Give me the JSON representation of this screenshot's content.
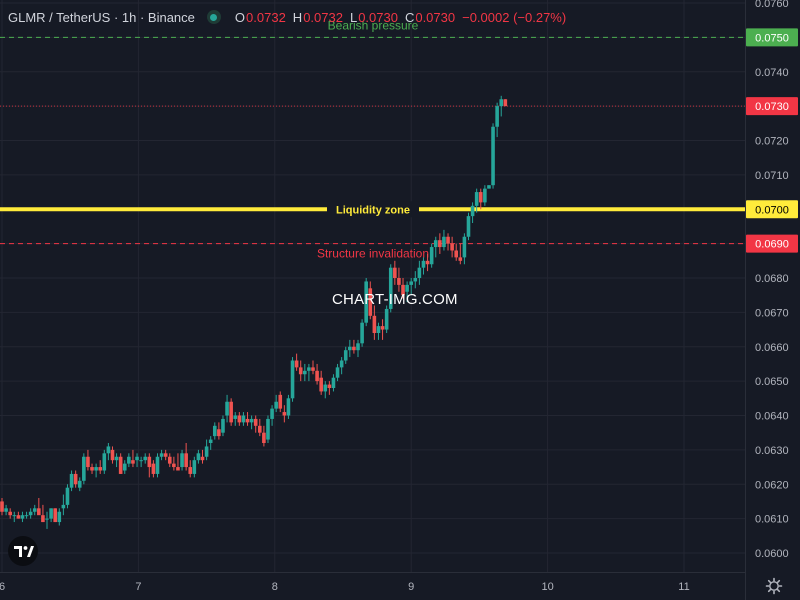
{
  "header": {
    "symbol": "GLMR / TetherUS · 1h · Binance",
    "open_key": "O",
    "open": "0.0732",
    "high_key": "H",
    "high": "0.0732",
    "low_key": "L",
    "low": "0.0730",
    "close_key": "C",
    "close": "0.0730",
    "change": "−0.0002 (−0.27%)",
    "status_color": "#26a69a"
  },
  "watermark": "CHART-IMG.COM",
  "colors": {
    "background": "#161a25",
    "grid": "#232632",
    "up": "#26a69a",
    "down": "#ef5350",
    "axis_text": "#b2b5be"
  },
  "icons": {
    "logo": "tradingview-logo-icon",
    "settings": "gear-icon"
  },
  "chart_data": {
    "type": "candlestick",
    "x_ticks": [
      "6",
      "7",
      "8",
      "9",
      "10",
      "11"
    ],
    "y_ticks": [
      "0.0600",
      "0.0610",
      "0.0620",
      "0.0630",
      "0.0640",
      "0.0650",
      "0.0660",
      "0.0670",
      "0.0680",
      "0.0690",
      "0.0700",
      "0.0710",
      "0.0720",
      "0.0730",
      "0.0740",
      "0.0750",
      "0.0760"
    ],
    "ylim": [
      0.0596,
      0.0762
    ],
    "xlim": [
      6.0,
      11.85
    ],
    "levels": [
      {
        "name": "bearish-pressure",
        "price": 0.075,
        "label": "Bearish pressure",
        "price_label": "0.0750",
        "color": "#4caf50",
        "style": "dashed"
      },
      {
        "name": "liquidity-zone",
        "price": 0.07,
        "label": "Liquidity zone",
        "price_label": "0.0700",
        "color": "#ffeb3b",
        "style": "solid"
      },
      {
        "name": "structure-invalidation",
        "price": 0.069,
        "label": "Structure invalidation",
        "price_label": "0.0690",
        "color": "#f23645",
        "style": "dashed"
      },
      {
        "name": "last-price",
        "price": 0.073,
        "label": "",
        "price_label": "0.0730",
        "color": "#f23645",
        "style": "dotted"
      }
    ],
    "candles_start": 6.0,
    "candle_step": 0.03,
    "candles": [
      [
        0.0615,
        0.0616,
        0.0611,
        0.0612
      ],
      [
        0.0612,
        0.0614,
        0.0611,
        0.0613
      ],
      [
        0.0612,
        0.0613,
        0.061,
        0.0611
      ],
      [
        0.0611,
        0.0612,
        0.0609,
        0.0611
      ],
      [
        0.0611,
        0.0612,
        0.061,
        0.061
      ],
      [
        0.061,
        0.0612,
        0.0609,
        0.0611
      ],
      [
        0.0611,
        0.0612,
        0.061,
        0.0611
      ],
      [
        0.0611,
        0.0613,
        0.061,
        0.0612
      ],
      [
        0.0612,
        0.0614,
        0.0611,
        0.0613
      ],
      [
        0.0613,
        0.0616,
        0.0612,
        0.0611
      ],
      [
        0.0611,
        0.0614,
        0.0609,
        0.0609
      ],
      [
        0.061,
        0.0612,
        0.0607,
        0.061
      ],
      [
        0.061,
        0.0613,
        0.0609,
        0.0613
      ],
      [
        0.0613,
        0.0613,
        0.0609,
        0.0609
      ],
      [
        0.0609,
        0.0613,
        0.0608,
        0.0612
      ],
      [
        0.0613,
        0.0617,
        0.0611,
        0.0614
      ],
      [
        0.0614,
        0.062,
        0.0613,
        0.0619
      ],
      [
        0.0619,
        0.0624,
        0.0618,
        0.0623
      ],
      [
        0.0623,
        0.0624,
        0.0619,
        0.062
      ],
      [
        0.0619,
        0.0622,
        0.0618,
        0.0621
      ],
      [
        0.0621,
        0.0629,
        0.062,
        0.0628
      ],
      [
        0.0628,
        0.063,
        0.0624,
        0.0625
      ],
      [
        0.0625,
        0.0626,
        0.0623,
        0.0624
      ],
      [
        0.0624,
        0.0626,
        0.0622,
        0.0625
      ],
      [
        0.0625,
        0.0627,
        0.0623,
        0.0624
      ],
      [
        0.0624,
        0.063,
        0.0623,
        0.0629
      ],
      [
        0.0629,
        0.0632,
        0.0627,
        0.0631
      ],
      [
        0.063,
        0.0631,
        0.0626,
        0.0627
      ],
      [
        0.0627,
        0.0629,
        0.0625,
        0.0628
      ],
      [
        0.0628,
        0.0629,
        0.0623,
        0.0623
      ],
      [
        0.0624,
        0.0627,
        0.0623,
        0.0626
      ],
      [
        0.0626,
        0.0629,
        0.0625,
        0.0628
      ],
      [
        0.0627,
        0.063,
        0.0625,
        0.0626
      ],
      [
        0.0627,
        0.0629,
        0.0625,
        0.0628
      ],
      [
        0.0627,
        0.0628,
        0.0625,
        0.0627
      ],
      [
        0.0627,
        0.0629,
        0.0626,
        0.0628
      ],
      [
        0.0628,
        0.0629,
        0.0622,
        0.0625
      ],
      [
        0.0626,
        0.0627,
        0.0622,
        0.0623
      ],
      [
        0.0623,
        0.0629,
        0.0622,
        0.0628
      ],
      [
        0.0628,
        0.063,
        0.0627,
        0.0629
      ],
      [
        0.0629,
        0.063,
        0.0627,
        0.0628
      ],
      [
        0.0628,
        0.0629,
        0.0625,
        0.0626
      ],
      [
        0.0626,
        0.0628,
        0.0624,
        0.0625
      ],
      [
        0.0625,
        0.0629,
        0.0624,
        0.0624
      ],
      [
        0.0625,
        0.063,
        0.0624,
        0.0629
      ],
      [
        0.0629,
        0.0632,
        0.0624,
        0.0625
      ],
      [
        0.0625,
        0.0627,
        0.0622,
        0.0623
      ],
      [
        0.0623,
        0.0628,
        0.0622,
        0.0627
      ],
      [
        0.0627,
        0.063,
        0.0626,
        0.0629
      ],
      [
        0.0628,
        0.063,
        0.0626,
        0.0627
      ],
      [
        0.0628,
        0.0633,
        0.0627,
        0.0631
      ],
      [
        0.0632,
        0.0634,
        0.063,
        0.0633
      ],
      [
        0.0634,
        0.0638,
        0.0633,
        0.0637
      ],
      [
        0.0636,
        0.0638,
        0.0633,
        0.0634
      ],
      [
        0.0635,
        0.064,
        0.0634,
        0.0639
      ],
      [
        0.064,
        0.0646,
        0.0638,
        0.0644
      ],
      [
        0.0644,
        0.0645,
        0.0637,
        0.0638
      ],
      [
        0.0639,
        0.0641,
        0.0637,
        0.064
      ],
      [
        0.064,
        0.0641,
        0.0637,
        0.0638
      ],
      [
        0.0638,
        0.0641,
        0.0637,
        0.064
      ],
      [
        0.0639,
        0.0641,
        0.0637,
        0.0638
      ],
      [
        0.0638,
        0.064,
        0.0636,
        0.0639
      ],
      [
        0.0639,
        0.064,
        0.0635,
        0.0637
      ],
      [
        0.0637,
        0.0639,
        0.0634,
        0.0635
      ],
      [
        0.0635,
        0.0637,
        0.0631,
        0.0632
      ],
      [
        0.0633,
        0.064,
        0.0632,
        0.0639
      ],
      [
        0.0639,
        0.0643,
        0.0637,
        0.0642
      ],
      [
        0.0642,
        0.0646,
        0.0641,
        0.0644
      ],
      [
        0.0646,
        0.0647,
        0.0641,
        0.0642
      ],
      [
        0.0641,
        0.0643,
        0.0638,
        0.064
      ],
      [
        0.064,
        0.0646,
        0.0639,
        0.0645
      ],
      [
        0.0645,
        0.0657,
        0.0644,
        0.0656
      ],
      [
        0.0656,
        0.0658,
        0.0653,
        0.0654
      ],
      [
        0.0654,
        0.0656,
        0.065,
        0.0652
      ],
      [
        0.0652,
        0.0655,
        0.065,
        0.0653
      ],
      [
        0.0653,
        0.0655,
        0.065,
        0.0654
      ],
      [
        0.0654,
        0.0656,
        0.0652,
        0.0653
      ],
      [
        0.0653,
        0.0655,
        0.0649,
        0.065
      ],
      [
        0.0651,
        0.0653,
        0.0646,
        0.0647
      ],
      [
        0.0647,
        0.065,
        0.0645,
        0.0649
      ],
      [
        0.0649,
        0.065,
        0.0646,
        0.0648
      ],
      [
        0.0648,
        0.0652,
        0.0647,
        0.0651
      ],
      [
        0.0651,
        0.0655,
        0.065,
        0.0654
      ],
      [
        0.0654,
        0.0657,
        0.0652,
        0.0656
      ],
      [
        0.0656,
        0.066,
        0.0655,
        0.0659
      ],
      [
        0.0659,
        0.0662,
        0.0657,
        0.066
      ],
      [
        0.066,
        0.0662,
        0.0658,
        0.0659
      ],
      [
        0.0659,
        0.0662,
        0.0657,
        0.0661
      ],
      [
        0.0661,
        0.0668,
        0.066,
        0.0667
      ],
      [
        0.0667,
        0.068,
        0.0666,
        0.0679
      ],
      [
        0.0677,
        0.0679,
        0.0668,
        0.0669
      ],
      [
        0.0669,
        0.0672,
        0.0662,
        0.0664
      ],
      [
        0.0664,
        0.0667,
        0.0662,
        0.0666
      ],
      [
        0.0666,
        0.0668,
        0.0662,
        0.0665
      ],
      [
        0.0665,
        0.0672,
        0.0664,
        0.0671
      ],
      [
        0.0671,
        0.0684,
        0.067,
        0.0683
      ],
      [
        0.0683,
        0.0685,
        0.0678,
        0.068
      ],
      [
        0.068,
        0.0683,
        0.0676,
        0.0678
      ],
      [
        0.0678,
        0.068,
        0.0674,
        0.0675
      ],
      [
        0.0676,
        0.0679,
        0.0673,
        0.0678
      ],
      [
        0.0678,
        0.068,
        0.0675,
        0.0679
      ],
      [
        0.0679,
        0.0682,
        0.0677,
        0.068
      ],
      [
        0.068,
        0.0685,
        0.0678,
        0.0683
      ],
      [
        0.0683,
        0.0686,
        0.0681,
        0.0685
      ],
      [
        0.0685,
        0.0687,
        0.0682,
        0.0684
      ],
      [
        0.0684,
        0.069,
        0.0683,
        0.0689
      ],
      [
        0.0689,
        0.0692,
        0.0686,
        0.0691
      ],
      [
        0.0691,
        0.0693,
        0.0687,
        0.0689
      ],
      [
        0.0689,
        0.0694,
        0.0688,
        0.0692
      ],
      [
        0.0692,
        0.0693,
        0.0688,
        0.069
      ],
      [
        0.069,
        0.0692,
        0.0686,
        0.0688
      ],
      [
        0.0688,
        0.069,
        0.0685,
        0.0686
      ],
      [
        0.0686,
        0.069,
        0.0684,
        0.0685
      ],
      [
        0.0686,
        0.0693,
        0.0684,
        0.0692
      ],
      [
        0.0692,
        0.0699,
        0.0691,
        0.0698
      ],
      [
        0.0698,
        0.0702,
        0.0696,
        0.0701
      ],
      [
        0.0701,
        0.0706,
        0.0699,
        0.0705
      ],
      [
        0.0705,
        0.0706,
        0.07,
        0.0702
      ],
      [
        0.0702,
        0.0707,
        0.0701,
        0.0706
      ],
      [
        0.0706,
        0.0707,
        0.0706,
        0.0707
      ],
      [
        0.0707,
        0.0725,
        0.0706,
        0.0724
      ],
      [
        0.0724,
        0.0731,
        0.0721,
        0.073
      ],
      [
        0.073,
        0.0733,
        0.0727,
        0.0732
      ],
      [
        0.0732,
        0.0732,
        0.073,
        0.073
      ]
    ]
  }
}
